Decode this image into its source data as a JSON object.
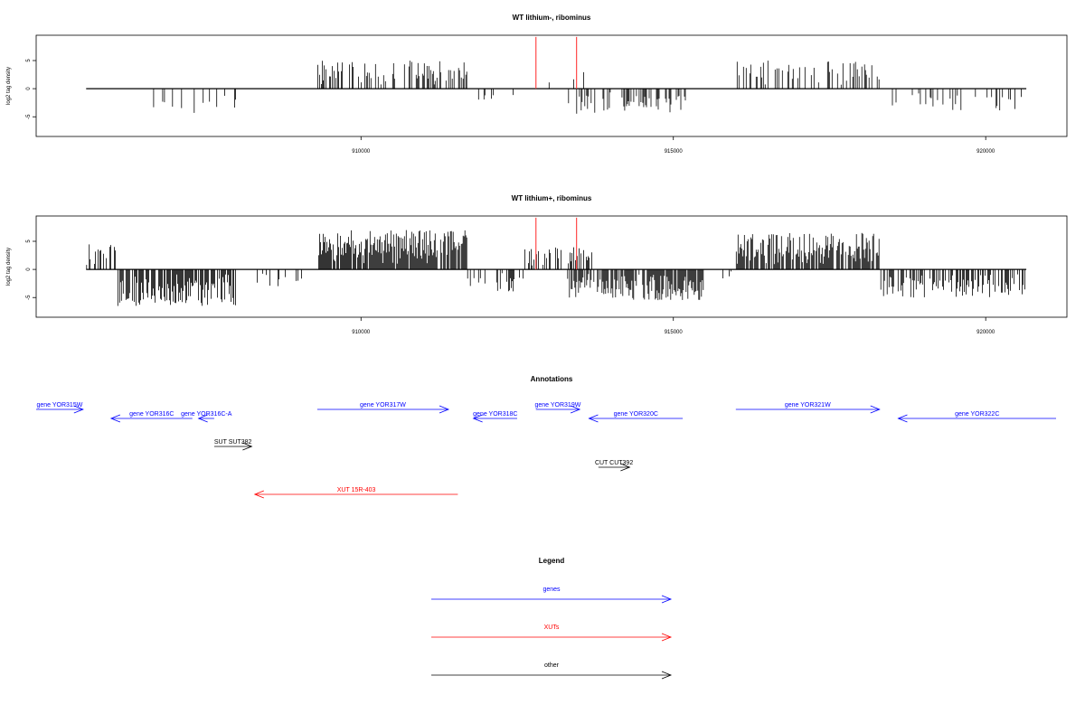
{
  "chart_data": [
    {
      "type": "bar",
      "title": "WT lithium-, ribominus",
      "ylabel": "log2 tag density",
      "xlim": [
        904800,
        921300
      ],
      "ylim": [
        -8.5,
        9.5
      ],
      "xticks": [
        910000,
        915000,
        920000
      ],
      "yticks": [
        -5,
        0,
        5
      ],
      "data_start": 905600,
      "data_end": 920650,
      "regions": [
        {
          "from": 905600,
          "to": 906100,
          "sign": 1,
          "amp": 4.0,
          "density": 0.05
        },
        {
          "from": 906500,
          "to": 908000,
          "sign": -1,
          "amp": 4.5,
          "density": 0.06
        },
        {
          "from": 909300,
          "to": 911700,
          "sign": 1,
          "amp": 5.0,
          "density": 0.2
        },
        {
          "from": 911700,
          "to": 912500,
          "sign": -1,
          "amp": 2.0,
          "density": 0.02
        },
        {
          "from": 912700,
          "to": 913700,
          "sign": 1,
          "amp": 3.0,
          "density": 0.03
        },
        {
          "from": 913300,
          "to": 915200,
          "sign": -1,
          "amp": 4.5,
          "density": 0.15
        },
        {
          "from": 916000,
          "to": 918300,
          "sign": 1,
          "amp": 5.0,
          "density": 0.15
        },
        {
          "from": 918500,
          "to": 920650,
          "sign": -1,
          "amp": 4.0,
          "density": 0.07
        }
      ],
      "markers": [
        912800,
        913450
      ],
      "marker_top": 9.2
    },
    {
      "type": "bar",
      "title": "WT lithium+, ribominus",
      "ylabel": "log2 tag density",
      "xlim": [
        904800,
        921300
      ],
      "ylim": [
        -8.5,
        9.5
      ],
      "xticks": [
        910000,
        915000,
        920000
      ],
      "yticks": [
        -5,
        0,
        5
      ],
      "data_start": 905600,
      "data_end": 920650,
      "regions": [
        {
          "from": 905600,
          "to": 906100,
          "sign": 1,
          "amp": 4.5,
          "density": 0.15
        },
        {
          "from": 906100,
          "to": 908000,
          "sign": -1,
          "amp": 6.5,
          "density": 0.35
        },
        {
          "from": 908000,
          "to": 909300,
          "sign": -1,
          "amp": 3.0,
          "density": 0.04
        },
        {
          "from": 909300,
          "to": 911700,
          "sign": 1,
          "amp": 7.0,
          "density": 0.4
        },
        {
          "from": 911700,
          "to": 912600,
          "sign": -1,
          "amp": 4.0,
          "density": 0.15
        },
        {
          "from": 912600,
          "to": 913700,
          "sign": 1,
          "amp": 4.0,
          "density": 0.2
        },
        {
          "from": 913300,
          "to": 915500,
          "sign": -1,
          "amp": 5.5,
          "density": 0.35
        },
        {
          "from": 915500,
          "to": 916000,
          "sign": -1,
          "amp": 2.0,
          "density": 0.05
        },
        {
          "from": 916000,
          "to": 918300,
          "sign": 1,
          "amp": 6.5,
          "density": 0.35
        },
        {
          "from": 918300,
          "to": 920650,
          "sign": -1,
          "amp": 5.0,
          "density": 0.25
        }
      ],
      "markers": [
        912800,
        913450
      ],
      "marker_top": 9.2
    }
  ],
  "annotations": {
    "title": "Annotations",
    "xlim": [
      904800,
      921300
    ],
    "tracks": [
      {
        "label": "gene YOR315W",
        "from": 904800,
        "to": 905550,
        "strand": "+",
        "color": "#0000ff",
        "row": 0
      },
      {
        "label": "gene YOR316C",
        "from": 906000,
        "to": 907300,
        "strand": "-",
        "color": "#0000ff",
        "row": 1
      },
      {
        "label": "gene YOR316C-A",
        "from": 907400,
        "to": 907650,
        "strand": "-",
        "color": "#0000ff",
        "row": 1
      },
      {
        "label": "gene YOR317W",
        "from": 909300,
        "to": 911400,
        "strand": "+",
        "color": "#0000ff",
        "row": 0
      },
      {
        "label": "gene YOR318C",
        "from": 911800,
        "to": 912500,
        "strand": "-",
        "color": "#0000ff",
        "row": 1
      },
      {
        "label": "gene YOR319W",
        "from": 912800,
        "to": 913500,
        "strand": "+",
        "color": "#0000ff",
        "row": 0
      },
      {
        "label": "gene YOR320C",
        "from": 913650,
        "to": 915150,
        "strand": "-",
        "color": "#0000ff",
        "row": 1
      },
      {
        "label": "gene YOR321W",
        "from": 916000,
        "to": 918300,
        "strand": "+",
        "color": "#0000ff",
        "row": 0
      },
      {
        "label": "gene YOR322C",
        "from": 918600,
        "to": 921300,
        "strand": "-",
        "color": "#0000ff",
        "row": 1
      },
      {
        "label": "SUT SUT382",
        "from": 907650,
        "to": 908250,
        "strand": "+",
        "color": "#000000",
        "row": 2
      },
      {
        "label": "CUT CUT392",
        "from": 913800,
        "to": 914300,
        "strand": "+",
        "color": "#000000",
        "row": 3
      },
      {
        "label": "XUT 15R-403",
        "from": 911550,
        "to": 908300,
        "strand": "-",
        "color": "#ff0000",
        "row": 4
      }
    ]
  },
  "legend": {
    "title": "Legend",
    "items": [
      {
        "label": "genes",
        "color": "#0000ff"
      },
      {
        "label": "XUTs",
        "color": "#ff0000"
      },
      {
        "label": "other",
        "color": "#000000"
      }
    ]
  }
}
